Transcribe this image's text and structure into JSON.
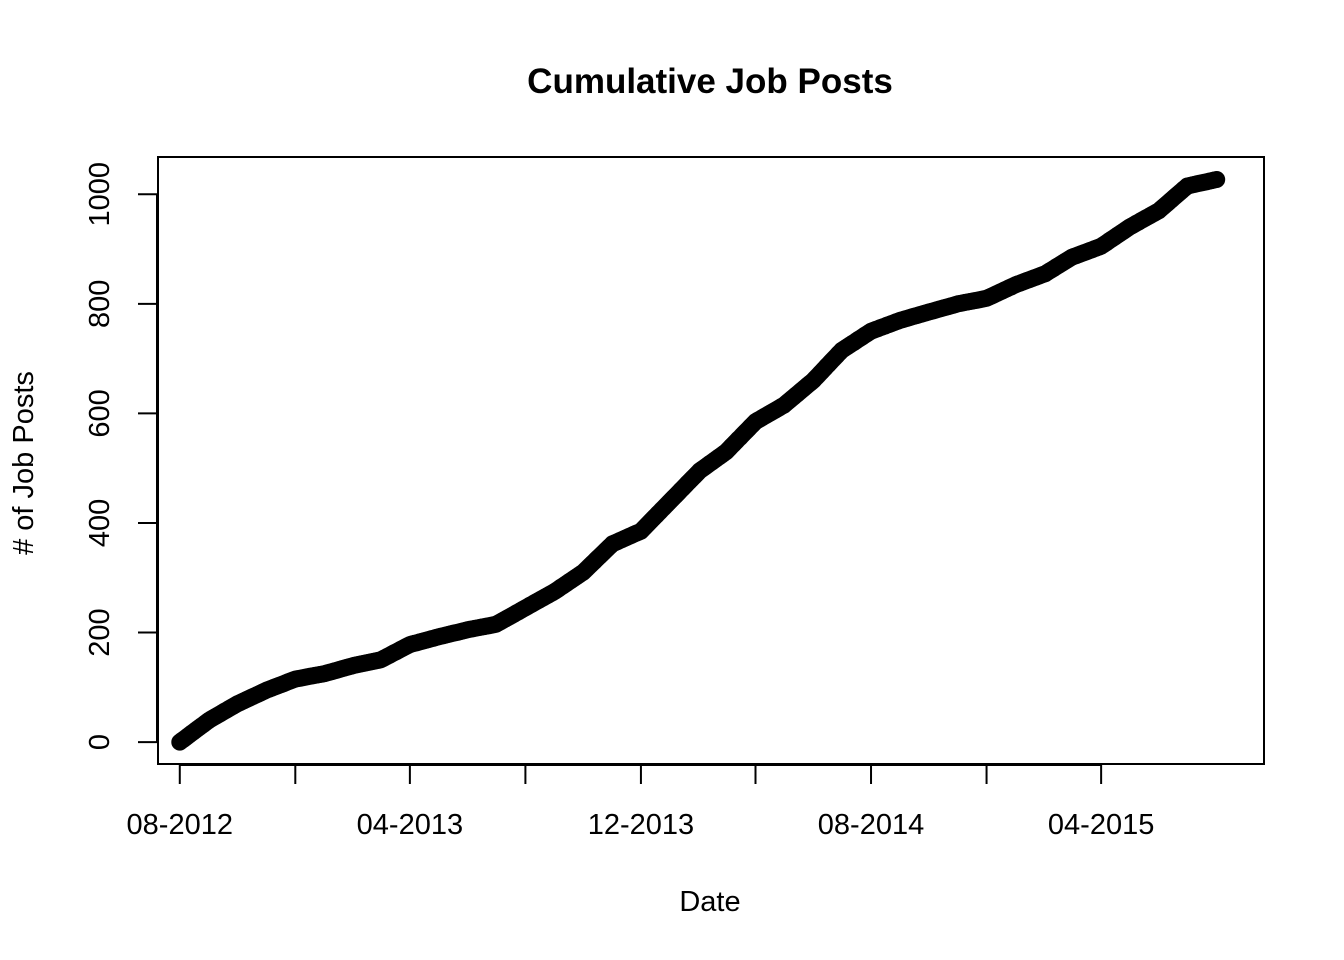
{
  "chart_data": {
    "type": "scatter",
    "title": "Cumulative Job Posts",
    "xlabel": "Date",
    "ylabel": "# of Job Posts",
    "grid": false,
    "legend": "none",
    "point_color": "#000000",
    "x_ticks": [
      {
        "date": "2012-08-01",
        "label": "08-2012"
      },
      {
        "date": "2012-12-01",
        "label": ""
      },
      {
        "date": "2013-04-01",
        "label": "04-2013"
      },
      {
        "date": "2013-08-01",
        "label": ""
      },
      {
        "date": "2013-12-01",
        "label": "12-2013"
      },
      {
        "date": "2014-04-01",
        "label": ""
      },
      {
        "date": "2014-08-01",
        "label": "08-2014"
      },
      {
        "date": "2014-12-01",
        "label": ""
      },
      {
        "date": "2015-04-01",
        "label": "04-2015"
      }
    ],
    "y_ticks": [
      0,
      200,
      400,
      600,
      800,
      1000
    ],
    "xlim": [
      "2012-07-09",
      "2015-09-20"
    ],
    "ylim": [
      -40,
      1068
    ],
    "series": [
      {
        "points": [
          [
            "2012-08-01",
            0
          ],
          [
            "2012-09-01",
            40
          ],
          [
            "2012-10-01",
            70
          ],
          [
            "2012-11-01",
            95
          ],
          [
            "2012-12-01",
            115
          ],
          [
            "2013-01-01",
            125
          ],
          [
            "2013-02-01",
            140
          ],
          [
            "2013-03-01",
            150
          ],
          [
            "2013-04-01",
            178
          ],
          [
            "2013-05-01",
            192
          ],
          [
            "2013-06-01",
            205
          ],
          [
            "2013-07-01",
            215
          ],
          [
            "2013-08-01",
            245
          ],
          [
            "2013-09-01",
            275
          ],
          [
            "2013-10-01",
            310
          ],
          [
            "2013-11-01",
            362
          ],
          [
            "2013-12-01",
            385
          ],
          [
            "2014-01-01",
            440
          ],
          [
            "2014-02-01",
            495
          ],
          [
            "2014-03-01",
            530
          ],
          [
            "2014-04-01",
            585
          ],
          [
            "2014-05-01",
            615
          ],
          [
            "2014-06-01",
            660
          ],
          [
            "2014-07-01",
            715
          ],
          [
            "2014-08-01",
            750
          ],
          [
            "2014-09-01",
            770
          ],
          [
            "2014-10-01",
            785
          ],
          [
            "2014-11-01",
            800
          ],
          [
            "2014-12-01",
            810
          ],
          [
            "2015-01-01",
            835
          ],
          [
            "2015-02-01",
            855
          ],
          [
            "2015-03-01",
            885
          ],
          [
            "2015-04-01",
            905
          ],
          [
            "2015-05-01",
            940
          ],
          [
            "2015-06-01",
            970
          ],
          [
            "2015-07-01",
            1015
          ],
          [
            "2015-08-01",
            1027
          ]
        ]
      }
    ]
  }
}
